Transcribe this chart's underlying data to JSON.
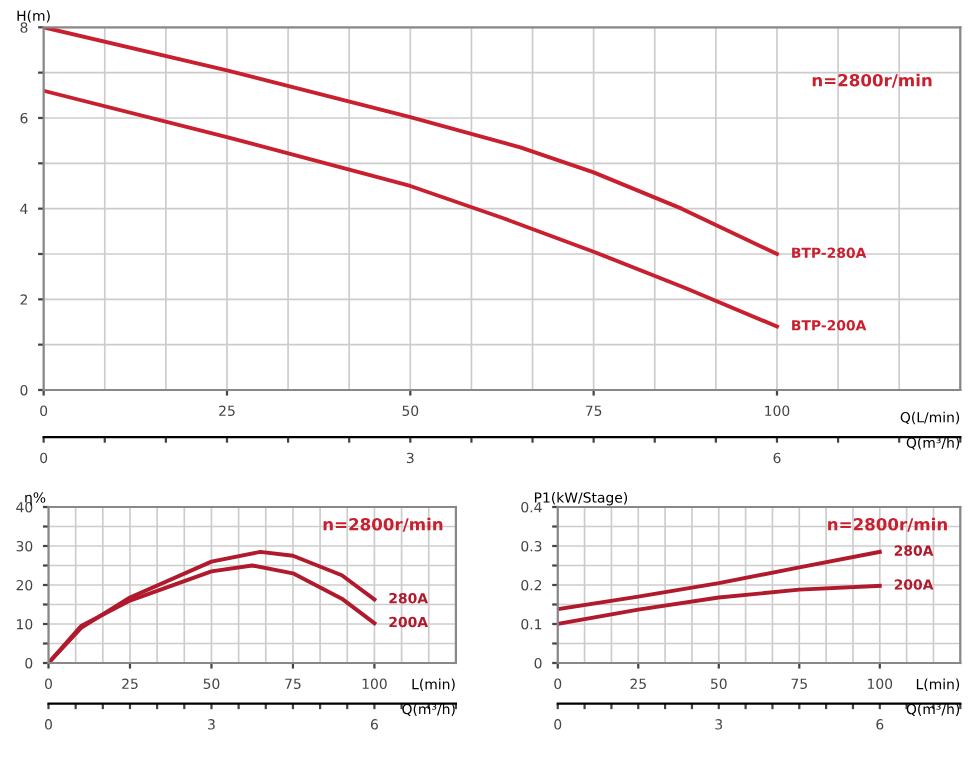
{
  "chart_data": [
    {
      "type": "line",
      "ylabel": "H(m)",
      "xlabel": "Q(L/min)",
      "x2label": "Q(m³/h)",
      "annotations": [
        "n=2800r/min"
      ],
      "xlim": [
        0,
        125
      ],
      "xticks": [
        0,
        25,
        50,
        75,
        100
      ],
      "ylim": [
        0,
        8
      ],
      "yticks": [
        0,
        {
          "value": 1,
          "label": null
        },
        2,
        {
          "value": 3,
          "label": null
        },
        4,
        {
          "value": 5,
          "label": null
        },
        6,
        {
          "value": 7,
          "label": null
        },
        8
      ],
      "x2lim": [
        0,
        7.5
      ],
      "x2ticks": [
        0,
        {
          "value": 0.5,
          "label": null
        },
        {
          "value": 1,
          "label": null
        },
        {
          "value": 1.5,
          "label": null
        },
        {
          "value": 2,
          "label": null
        },
        {
          "value": 2.5,
          "label": null
        },
        3,
        {
          "value": 3.5,
          "label": null
        },
        {
          "value": 4,
          "label": null
        },
        {
          "value": 4.5,
          "label": null
        },
        {
          "value": 5,
          "label": null
        },
        {
          "value": 5.5,
          "label": null
        },
        6,
        {
          "value": 6.5,
          "label": null
        },
        {
          "value": 7,
          "label": null
        },
        {
          "value": 7.5,
          "label": null
        }
      ],
      "grid": true,
      "legend": false,
      "marker": "none",
      "line_style": "solid",
      "series": [
        {
          "name": "BTP-280A",
          "color": "#c8202e",
          "x": [
            0,
            25,
            50,
            65,
            75,
            87,
            100
          ],
          "values": [
            8,
            7.05,
            6.02,
            5.35,
            4.8,
            4.0,
            3.0
          ]
        },
        {
          "name": "BTP-200A",
          "color": "#c8202e",
          "x": [
            0,
            25,
            50,
            62.5,
            75,
            87.5,
            100
          ],
          "values": [
            6.6,
            5.58,
            4.5,
            3.8,
            3.05,
            2.25,
            1.4
          ]
        }
      ]
    },
    {
      "type": "line",
      "ylabel": "η%",
      "xlabel": "L(min)",
      "x2label": "Q(m³/h)",
      "annotations": [
        "n=2800r/min"
      ],
      "xlim": [
        0,
        125
      ],
      "xticks": [
        0,
        25,
        50,
        75,
        100
      ],
      "ylim": [
        0,
        40
      ],
      "yticks": [
        0,
        {
          "value": 5,
          "label": null
        },
        10,
        {
          "value": 15,
          "label": null
        },
        20,
        {
          "value": 25,
          "label": null
        },
        30,
        {
          "value": 35,
          "label": null
        },
        40
      ],
      "x2lim": [
        0,
        7.5
      ],
      "x2ticks": [
        0,
        {
          "value": 0.5,
          "label": null
        },
        {
          "value": 1,
          "label": null
        },
        {
          "value": 1.5,
          "label": null
        },
        {
          "value": 2,
          "label": null
        },
        {
          "value": 2.5,
          "label": null
        },
        3,
        {
          "value": 3.5,
          "label": null
        },
        {
          "value": 4,
          "label": null
        },
        {
          "value": 4.5,
          "label": null
        },
        {
          "value": 5,
          "label": null
        },
        {
          "value": 5.5,
          "label": null
        },
        6,
        {
          "value": 6.5,
          "label": null
        },
        {
          "value": 7,
          "label": null
        },
        {
          "value": 7.5,
          "label": null
        }
      ],
      "grid": true,
      "legend": false,
      "marker": "none",
      "line_style": "solid",
      "series": [
        {
          "name": "280A",
          "color": "#b01a2c",
          "x": [
            0,
            10,
            25,
            50,
            65,
            75,
            90,
            100
          ],
          "values": [
            0,
            9,
            16.8,
            26,
            28.5,
            27.5,
            22.5,
            16.3
          ]
        },
        {
          "name": "200A",
          "color": "#b01a2c",
          "x": [
            0,
            10,
            25,
            50,
            62.5,
            75,
            90,
            100
          ],
          "values": [
            0,
            9.5,
            16,
            23.5,
            25,
            23,
            16.5,
            10.2
          ]
        }
      ]
    },
    {
      "type": "line",
      "ylabel": "P1(kW/Stage)",
      "xlabel": "L(min)",
      "x2label": "Q(m³/h)",
      "annotations": [
        "n=2800r/min"
      ],
      "xlim": [
        0,
        125
      ],
      "xticks": [
        0,
        25,
        50,
        75,
        100
      ],
      "ylim": [
        0,
        0.4
      ],
      "yticks": [
        0,
        {
          "value": 0.05,
          "label": null
        },
        0.1,
        {
          "value": 0.15,
          "label": null
        },
        0.2,
        {
          "value": 0.25,
          "label": null
        },
        0.3,
        {
          "value": 0.35,
          "label": null
        },
        0.4
      ],
      "x2lim": [
        0,
        7.5
      ],
      "x2ticks": [
        0,
        {
          "value": 0.5,
          "label": null
        },
        {
          "value": 1,
          "label": null
        },
        {
          "value": 1.5,
          "label": null
        },
        {
          "value": 2,
          "label": null
        },
        {
          "value": 2.5,
          "label": null
        },
        3,
        {
          "value": 3.5,
          "label": null
        },
        {
          "value": 4,
          "label": null
        },
        {
          "value": 4.5,
          "label": null
        },
        {
          "value": 5,
          "label": null
        },
        {
          "value": 5.5,
          "label": null
        },
        6,
        {
          "value": 6.5,
          "label": null
        },
        {
          "value": 7,
          "label": null
        },
        {
          "value": 7.5,
          "label": null
        }
      ],
      "grid": true,
      "legend": false,
      "marker": "none",
      "line_style": "solid",
      "series": [
        {
          "name": "280A",
          "color": "#b01a2c",
          "x": [
            0,
            25,
            50,
            75,
            100
          ],
          "values": [
            0.138,
            0.17,
            0.205,
            0.245,
            0.285
          ]
        },
        {
          "name": "200A",
          "color": "#b01a2c",
          "x": [
            0,
            25,
            50,
            75,
            100
          ],
          "values": [
            0.1,
            0.137,
            0.168,
            0.188,
            0.198
          ]
        }
      ]
    }
  ]
}
